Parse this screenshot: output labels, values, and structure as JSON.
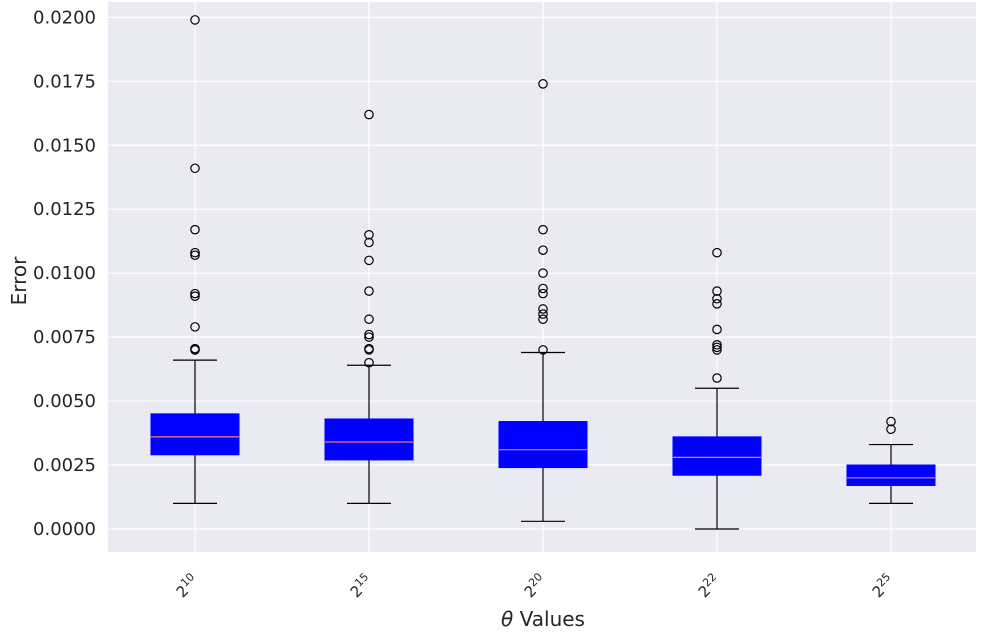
{
  "chart_data": {
    "type": "boxplot",
    "title": "",
    "xlabel_symbol": "θ",
    "xlabel_text": " Values",
    "ylabel": "Error",
    "ylim": [
      -0.0009,
      0.0206
    ],
    "yticks": [
      0.0,
      0.0025,
      0.005,
      0.0075,
      0.01,
      0.0125,
      0.015,
      0.0175,
      0.02
    ],
    "ytick_labels": [
      "0.0000",
      "0.0025",
      "0.0050",
      "0.0075",
      "0.0100",
      "0.0125",
      "0.0150",
      "0.0175",
      "0.0200"
    ],
    "categories": [
      {
        "base": "2",
        "exp": "10"
      },
      {
        "base": "2",
        "exp": "15"
      },
      {
        "base": "2",
        "exp": "20"
      },
      {
        "base": "2",
        "exp": "22"
      },
      {
        "base": "2",
        "exp": "25"
      }
    ],
    "boxes": [
      {
        "whislo": 0.001,
        "q1": 0.0029,
        "med": 0.0036,
        "q3": 0.0045,
        "whishi": 0.0066,
        "fliers": [
          0.0199,
          0.0141,
          0.0117,
          0.0108,
          0.0107,
          0.0092,
          0.0091,
          0.0079,
          0.00705,
          0.007,
          0.007
        ]
      },
      {
        "whislo": 0.001,
        "q1": 0.0027,
        "med": 0.0034,
        "q3": 0.0043,
        "whishi": 0.0064,
        "fliers": [
          0.0162,
          0.0115,
          0.0112,
          0.0105,
          0.0093,
          0.0082,
          0.0076,
          0.0075,
          0.00705,
          0.007,
          0.0065
        ]
      },
      {
        "whislo": 0.0003,
        "q1": 0.0024,
        "med": 0.0031,
        "q3": 0.0042,
        "whishi": 0.0069,
        "fliers": [
          0.0174,
          0.0117,
          0.0109,
          0.01,
          0.0094,
          0.0092,
          0.0086,
          0.0084,
          0.0082,
          0.007
        ]
      },
      {
        "whislo": 0.0,
        "q1": 0.0021,
        "med": 0.0028,
        "q3": 0.0036,
        "whishi": 0.0055,
        "fliers": [
          0.0108,
          0.0093,
          0.009,
          0.0088,
          0.0078,
          0.0072,
          0.0071,
          0.007,
          0.0059
        ]
      },
      {
        "whislo": 0.001,
        "q1": 0.0017,
        "med": 0.002,
        "q3": 0.0025,
        "whishi": 0.0033,
        "fliers": [
          0.0042,
          0.0039
        ]
      }
    ],
    "colors": {
      "background": "#eaeaf2",
      "grid": "#ffffff",
      "box_fill": "#0000ff",
      "median": "#f08070",
      "line": "#000000"
    },
    "grid": true
  }
}
